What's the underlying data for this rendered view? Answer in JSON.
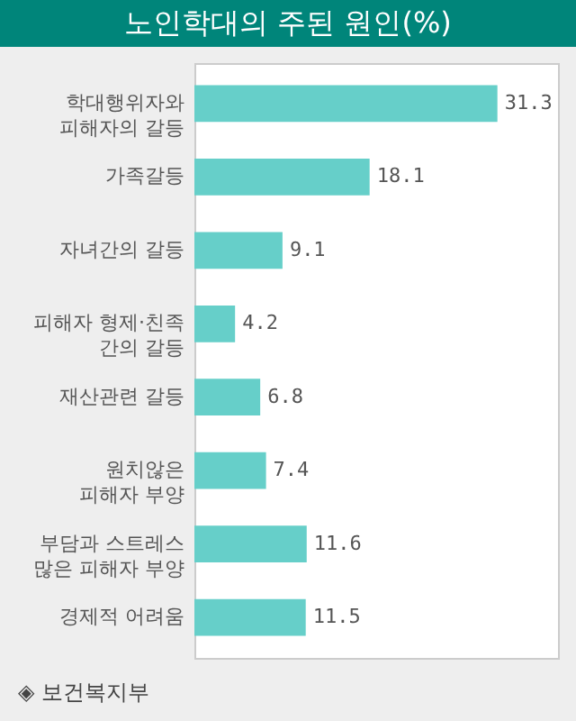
{
  "chart_data": {
    "type": "bar",
    "orientation": "horizontal",
    "title": "노인학대의 주된 원인(%)",
    "categories": [
      "학대행위자와\n피해자의 갈등",
      "가족갈등",
      "자녀간의 갈등",
      "피해자 형제·친족\n간의 갈등",
      "재산관련 갈등",
      "원치않은\n피해자 부양",
      "부담과 스트레스\n많은 피해자 부양",
      "경제적 어려움"
    ],
    "values": [
      31.3,
      18.1,
      9.1,
      4.2,
      6.8,
      7.4,
      11.6,
      11.5
    ],
    "color": "#66cfc9",
    "data_labels": true,
    "grid": false,
    "annotations": [
      "◈ 보건복지부"
    ]
  }
}
